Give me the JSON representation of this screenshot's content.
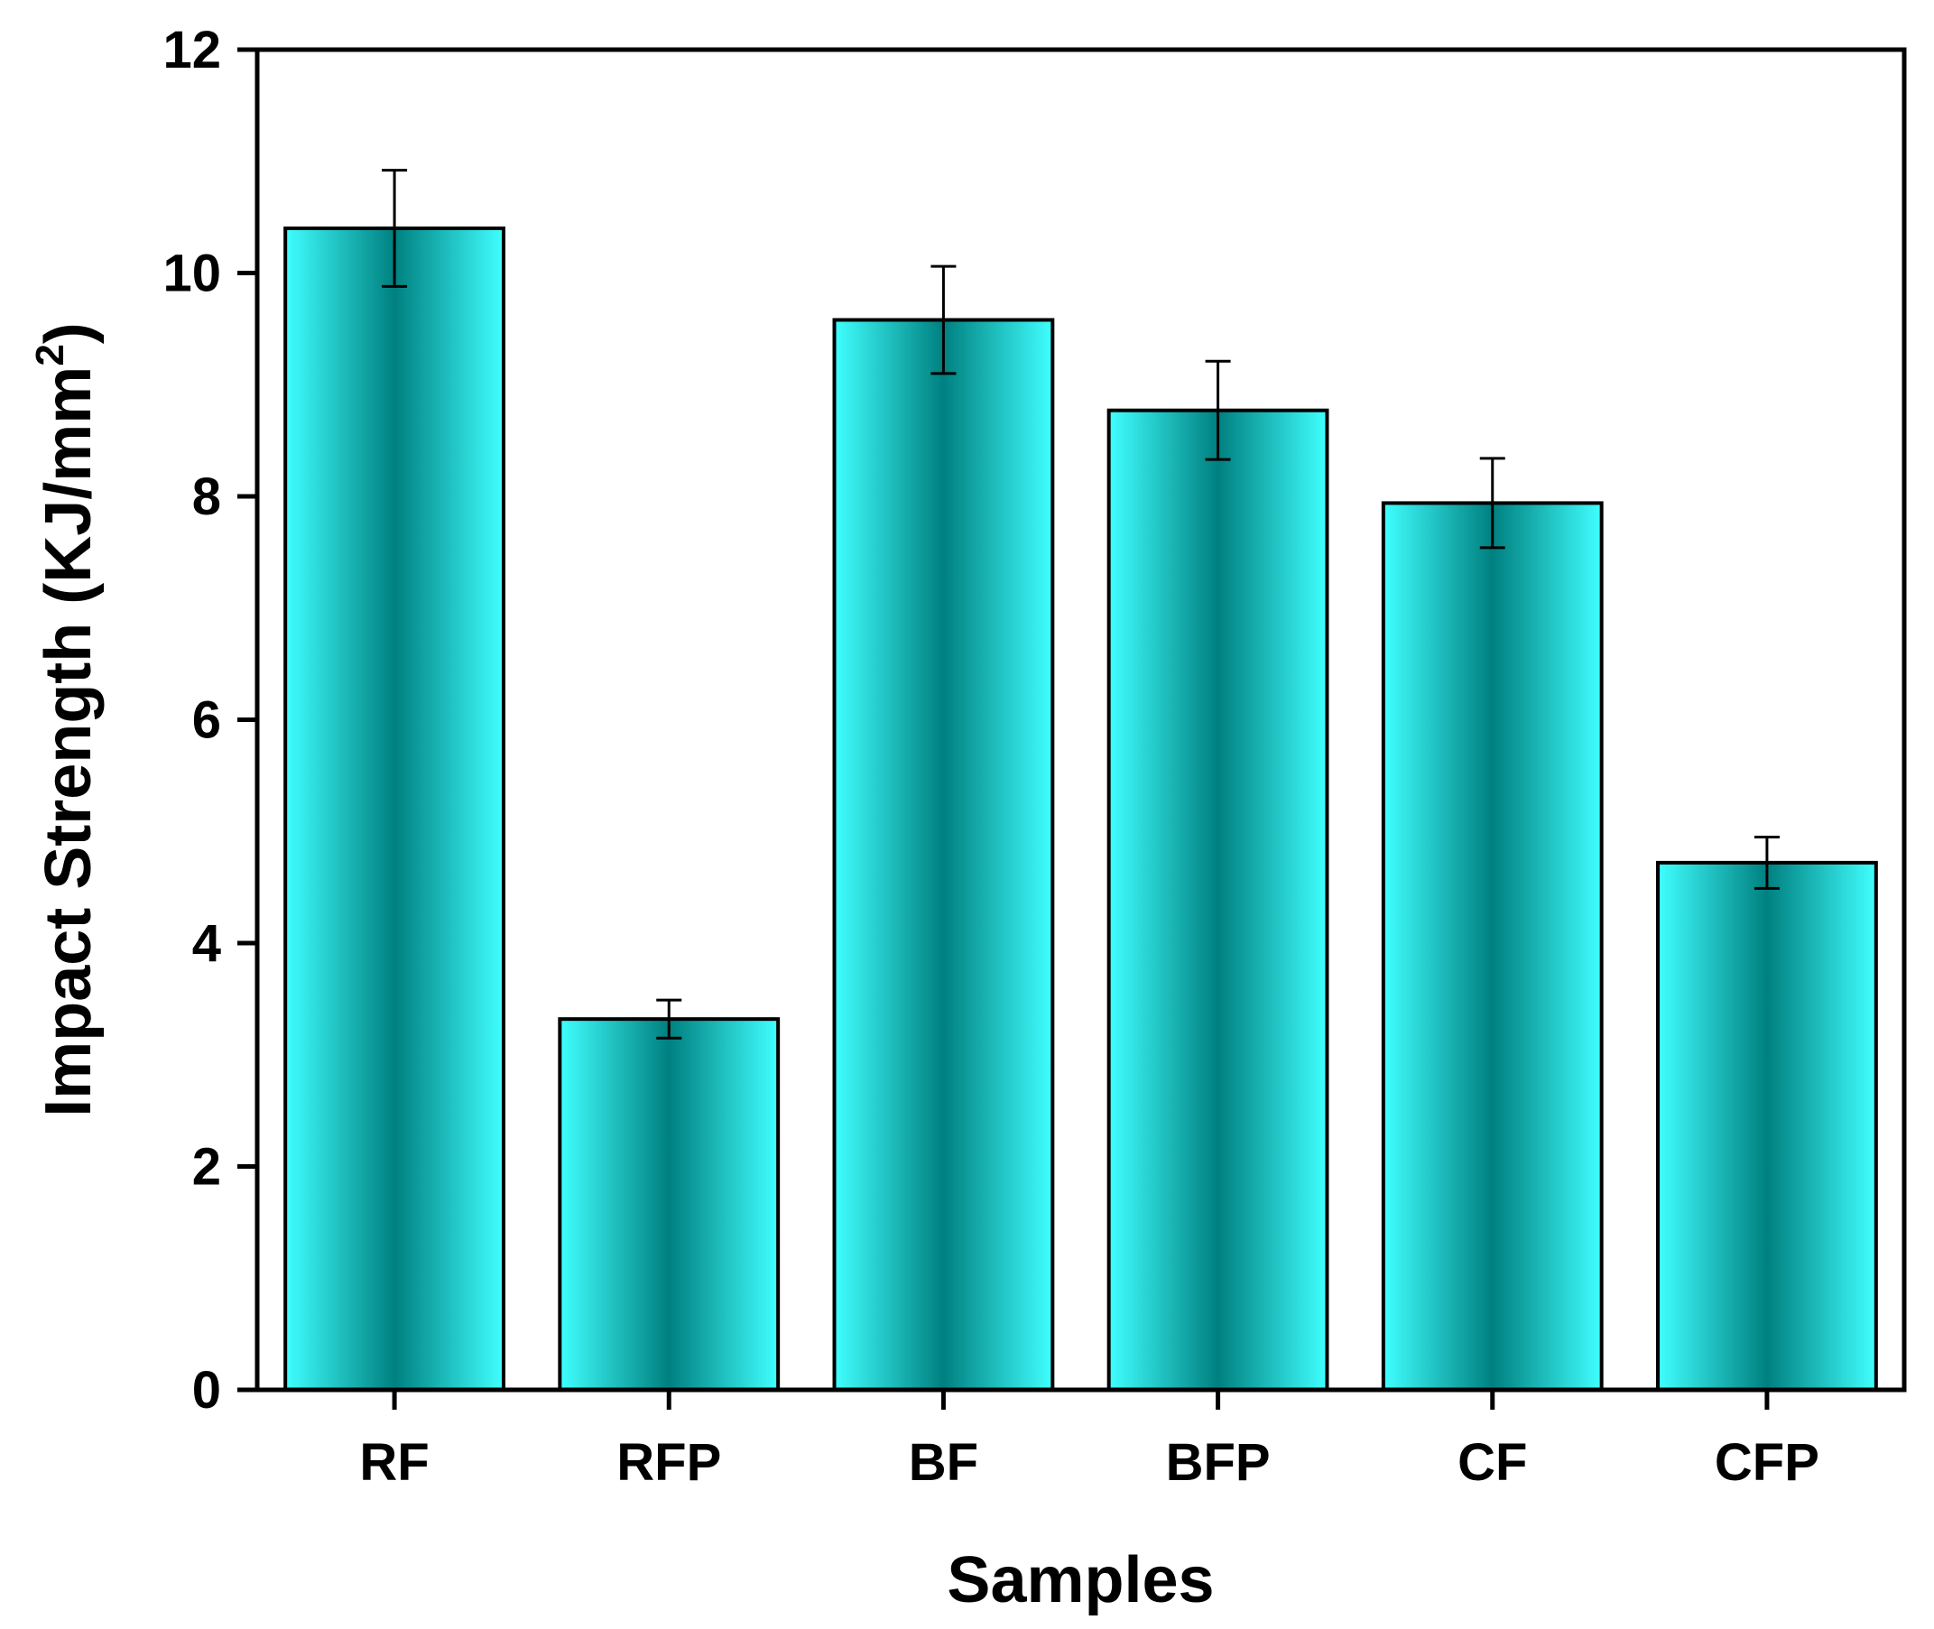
{
  "chart_data": {
    "type": "bar",
    "title": "",
    "xlabel": "Samples",
    "ylabel": "Impact Strength (KJ/mm",
    "ylabel_sup": "2",
    "ylabel_close": ")",
    "categories": [
      "RF",
      "RFP",
      "BF",
      "BFP",
      "CF",
      "CFP"
    ],
    "values": [
      10.4,
      3.32,
      9.58,
      8.77,
      7.94,
      4.72
    ],
    "errors": [
      0.52,
      0.17,
      0.48,
      0.44,
      0.4,
      0.23
    ],
    "ylim": [
      0,
      12
    ],
    "yticks": [
      0,
      2,
      4,
      6,
      8,
      10,
      12
    ],
    "grid": false,
    "colors": {
      "bar_edge": "#00807a",
      "bar_light": "#40ffff",
      "bar_dark": "#008080",
      "axis": "#000000"
    }
  }
}
